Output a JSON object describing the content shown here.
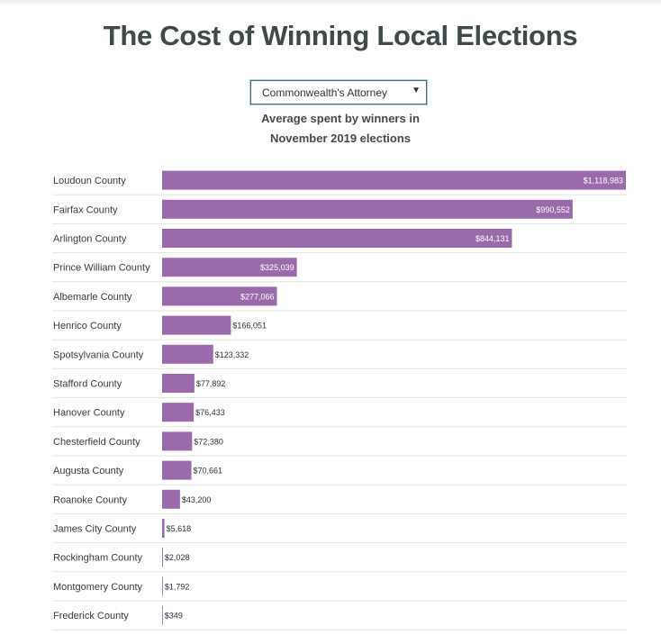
{
  "title": "The Cost of Winning Local Elections",
  "selector": {
    "selected": "Commonwealth's Attorney"
  },
  "subtitle_line1": "Average spent by winners in",
  "subtitle_line2": "November 2019 elections",
  "colors": {
    "bar": "#9b6aab",
    "row_line": "#e3e3e3",
    "label": "#3c3c3c"
  },
  "chart_data": {
    "type": "bar",
    "orientation": "horizontal",
    "categories": [
      "Loudoun County",
      "Fairfax County",
      "Arlington County",
      "Prince William County",
      "Albemarle County",
      "Henrico County",
      "Spotsylvania County",
      "Stafford County",
      "Hanover County",
      "Chesterfield County",
      "Augusta County",
      "Roanoke County",
      "James City County",
      "Rockingham County",
      "Montgomery County",
      "Frederick County"
    ],
    "values": [
      1118983,
      990552,
      844131,
      325039,
      277066,
      166051,
      123332,
      77892,
      76433,
      72380,
      70661,
      43200,
      5618,
      2028,
      1792,
      349
    ],
    "value_labels": [
      "$1,118,983",
      "$990,552",
      "$844,131",
      "$325,039",
      "$277,066",
      "$166,051",
      "$123,332",
      "$77,892",
      "$76,433",
      "$72,380",
      "$70,661",
      "$43,200",
      "$5,618",
      "$2,028",
      "$1,792",
      "$349"
    ],
    "xlim": [
      0,
      1118983
    ]
  }
}
